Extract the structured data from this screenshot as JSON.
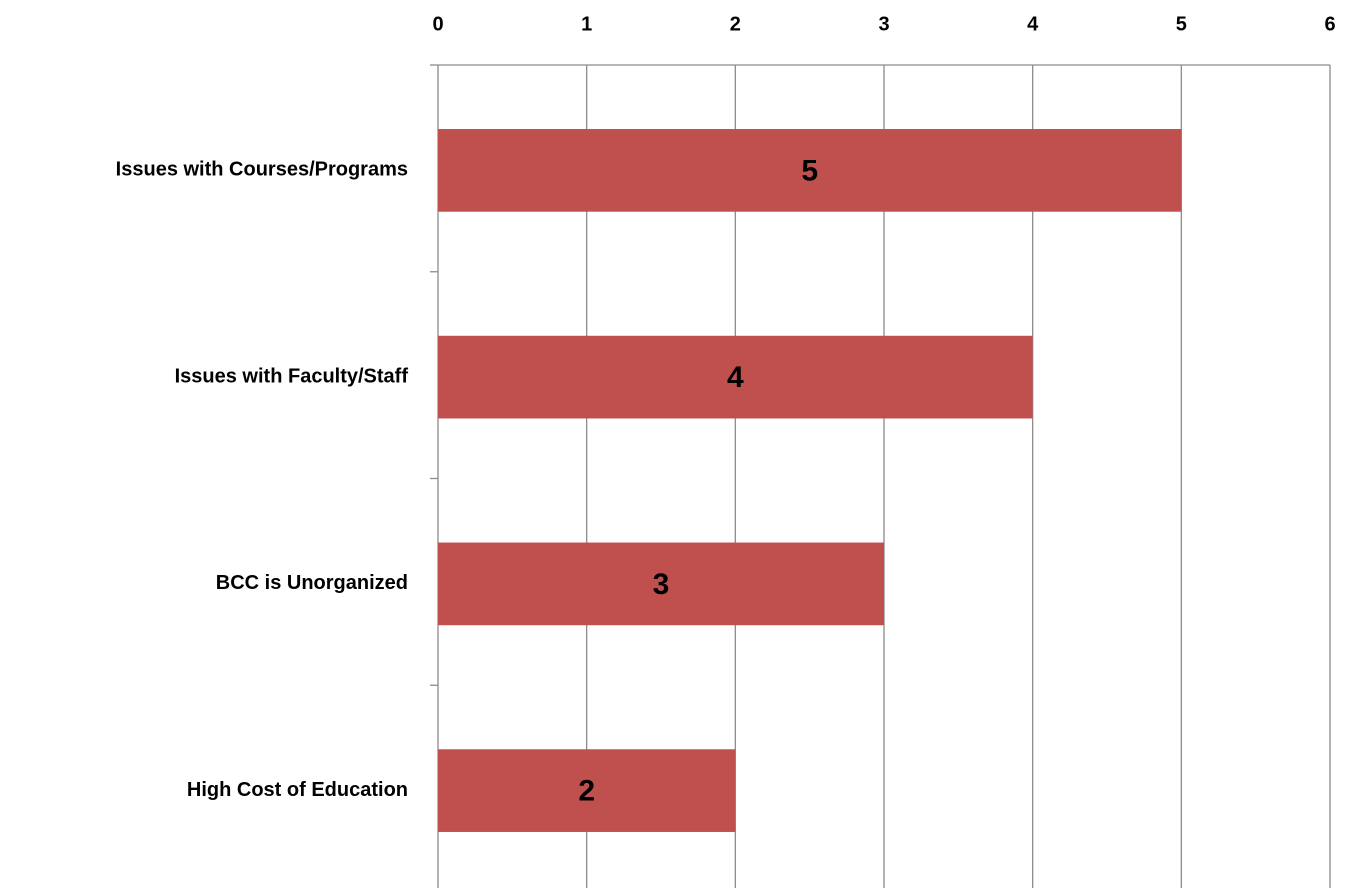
{
  "chart_data": {
    "type": "bar",
    "orientation": "horizontal",
    "categories": [
      "Issues with Courses/Programs",
      "Issues with Faculty/Staff",
      "BCC is Unorganized",
      "High Cost of Education"
    ],
    "values": [
      5,
      4,
      3,
      2
    ],
    "color": "#c0504d",
    "xlim": [
      0,
      6
    ],
    "xticks": [
      0,
      1,
      2,
      3,
      4,
      5,
      6
    ],
    "grid": true
  }
}
